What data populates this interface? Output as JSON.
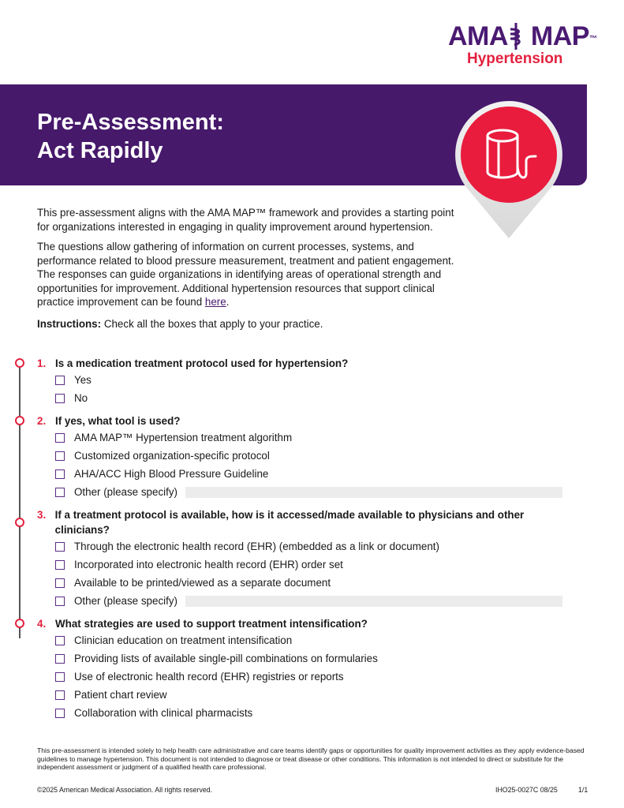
{
  "logo": {
    "main": "AMA",
    "main2": "MAP",
    "tm": "™",
    "sub": "Hypertension"
  },
  "header": {
    "title_line1": "Pre-Assessment:",
    "title_line2": "Act Rapidly",
    "icon": "blood-pressure-cuff-icon"
  },
  "colors": {
    "purple": "#46196b",
    "red": "#e3213f"
  },
  "intro": {
    "p1": "This pre-assessment aligns with the AMA MAP™ framework and provides a starting point for organizations interested in engaging in quality improvement around hypertension.",
    "p2": "The questions allow gathering of information on current processes, systems, and performance related to blood pressure measurement, treatment and patient engagement. The responses can guide organizations in identifying areas of operational strength and opportunities for improvement. Additional hypertension resources that support clinical practice improvement can be found ",
    "link": "here",
    "p2_end": "."
  },
  "instructions": {
    "label": "Instructions:",
    "text": " Check all the boxes that apply to your practice."
  },
  "questions": [
    {
      "num": "1.",
      "text": "Is a medication treatment protocol used for hypertension?",
      "options": [
        "Yes",
        "No"
      ]
    },
    {
      "num": "2.",
      "text": "If yes, what tool is used?",
      "options": [
        "AMA MAP™ Hypertension treatment algorithm",
        "Customized organization-specific protocol",
        "AHA/ACC High Blood Pressure Guideline",
        "Other (please specify)"
      ]
    },
    {
      "num": "3.",
      "text": "If a treatment protocol is available, how is it accessed/made available to physicians and other clinicians?",
      "options": [
        "Through the electronic health record (EHR) (embedded as a link or document)",
        "Incorporated into electronic health record (EHR) order set",
        "Available to be printed/viewed as a separate document",
        "Other (please specify)"
      ]
    },
    {
      "num": "4.",
      "text": "What strategies are used to support treatment intensification?",
      "options": [
        "Clinician education on treatment intensification",
        "Providing lists of available single-pill combinations on formularies",
        "Use of electronic health record (EHR) registries or reports",
        "Patient chart review",
        "Collaboration with clinical pharmacists"
      ]
    }
  ],
  "footer": {
    "disclaimer": "This pre-assessment is intended solely to help health care administrative and care teams identify gaps or opportunities for quality improvement activities as they apply evidence-based guidelines to manage hypertension. This document is not intended to diagnose or treat disease or other conditions. This information is not intended to direct or substitute for the independent assessment or judgment of a qualified health care professional.",
    "copyright": "©2025 American Medical Association. All rights reserved.",
    "code": "IHO25-0027C 08/25",
    "page": "1/1"
  }
}
